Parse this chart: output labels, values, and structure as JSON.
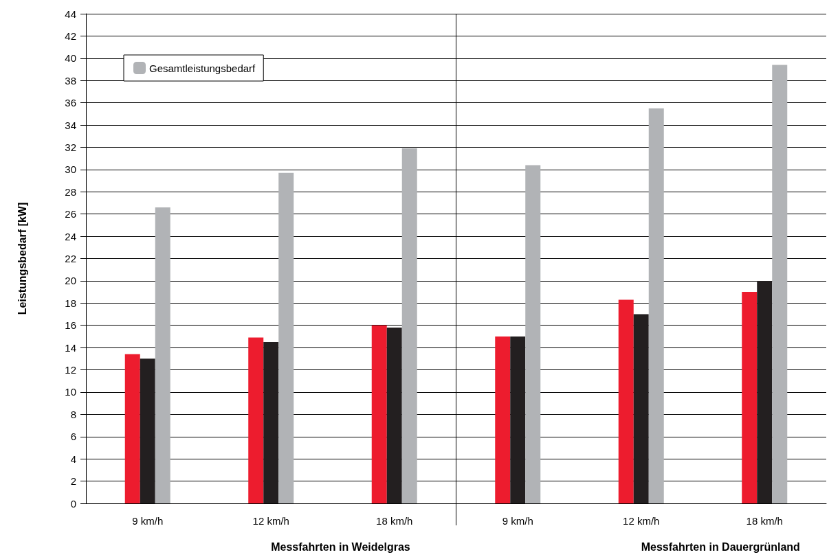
{
  "chart_data": {
    "type": "bar",
    "ylabel": "Leistungsbedarf [kW]",
    "categories": [
      "9 km/h",
      "12 km/h",
      "18 km/h",
      "9 km/h",
      "12 km/h",
      "18 km/h"
    ],
    "series": [
      {
        "color": "#ed1c2e",
        "values": [
          13.4,
          14.9,
          16.0,
          15.0,
          18.3,
          19.0
        ]
      },
      {
        "color": "#231f20",
        "values": [
          13.0,
          14.5,
          15.8,
          15.0,
          17.0,
          20.0
        ]
      },
      {
        "name": "Gesamtleistungsbedarf",
        "color": "#b1b3b6",
        "values": [
          26.6,
          29.7,
          31.9,
          30.4,
          35.5,
          39.4
        ]
      }
    ],
    "annotations": [
      "Messfahrten in Weidelgras",
      "Messfahrten in Dauergrünland"
    ],
    "ylim": [
      0,
      44
    ],
    "yticks": [
      0,
      2,
      4,
      6,
      8,
      10,
      12,
      14,
      16,
      18,
      20,
      22,
      24,
      26,
      28,
      30,
      32,
      34,
      36,
      38,
      40,
      42,
      44
    ],
    "grid": "y",
    "legend": "top left"
  }
}
